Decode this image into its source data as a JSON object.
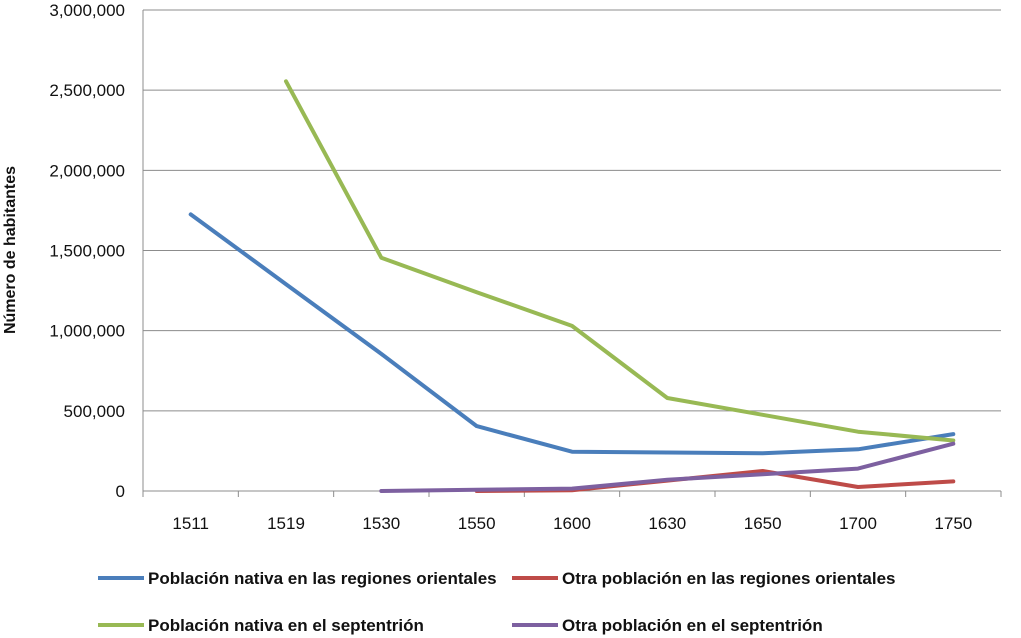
{
  "chart_data": {
    "type": "line",
    "title": "",
    "xlabel": "",
    "ylabel": "Número de habitantes",
    "categories": [
      "1511",
      "1519",
      "1530",
      "1550",
      "1600",
      "1630",
      "1650",
      "1700",
      "1750"
    ],
    "ylim": [
      0,
      3000000
    ],
    "yticks": [
      0,
      500000,
      1000000,
      1500000,
      2000000,
      2500000,
      3000000
    ],
    "ytick_labels": [
      "0",
      "500,000",
      "1,000,000",
      "1,500,000",
      "2,000,000",
      "2,500,000",
      "3,000,000"
    ],
    "grid": "horizontal",
    "legend_position": "bottom",
    "series": [
      {
        "name": "Población nativa en las regiones orientales",
        "color": "#4a7ebb",
        "values": [
          1725000,
          1290000,
          855000,
          405000,
          245000,
          240000,
          235000,
          260000,
          355000
        ]
      },
      {
        "name": "Otra población en las regiones orientales",
        "color": "#be4b48",
        "values": [
          null,
          null,
          null,
          0,
          5000,
          65000,
          125000,
          25000,
          60000
        ]
      },
      {
        "name": "Población nativa en el septentrión",
        "color": "#98b954",
        "values": [
          null,
          2555000,
          1455000,
          1240000,
          1030000,
          580000,
          475000,
          370000,
          315000
        ]
      },
      {
        "name": "Otra población en el septentrión",
        "color": "#7d60a0",
        "values": [
          null,
          null,
          0,
          8000,
          15000,
          70000,
          105000,
          140000,
          295000
        ]
      }
    ]
  }
}
